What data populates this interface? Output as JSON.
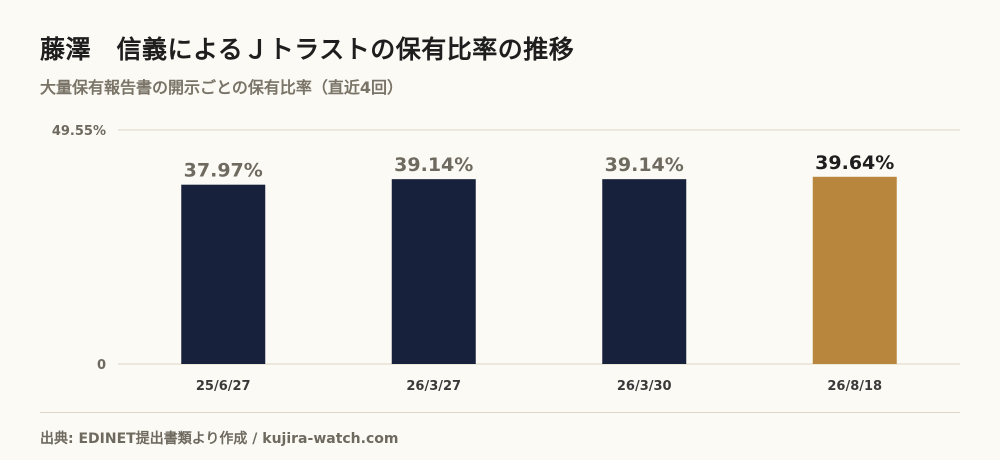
{
  "title": "藤澤　信義によるＪトラストの保有比率の推移",
  "subtitle": "大量保有報告書の開示ごとの保有比率（直近4回）",
  "source": "出典: EDINET提出書類より作成 / kujira-watch.com",
  "colors": {
    "bar_default": "#18213b",
    "bar_latest": "#b8863c",
    "label_default": "#6e6a60",
    "label_latest": "#1e1e1e",
    "grid": "#ddd6c4",
    "axis_text": "#6e6a60"
  },
  "chart_data": {
    "type": "bar",
    "title": "藤澤　信義によるＪトラストの保有比率の推移",
    "subtitle": "大量保有報告書の開示ごとの保有比率（直近4回）",
    "categories": [
      "25/6/27",
      "26/3/27",
      "26/3/30",
      "26/8/18"
    ],
    "values": [
      37.97,
      39.14,
      39.14,
      39.64
    ],
    "value_labels": [
      "37.97%",
      "39.14%",
      "39.14%",
      "39.64%"
    ],
    "ylim": [
      0,
      49.55
    ],
    "y_tick_labels": [
      "0",
      "49.55%"
    ],
    "grid": true,
    "highlight_index": 3
  }
}
